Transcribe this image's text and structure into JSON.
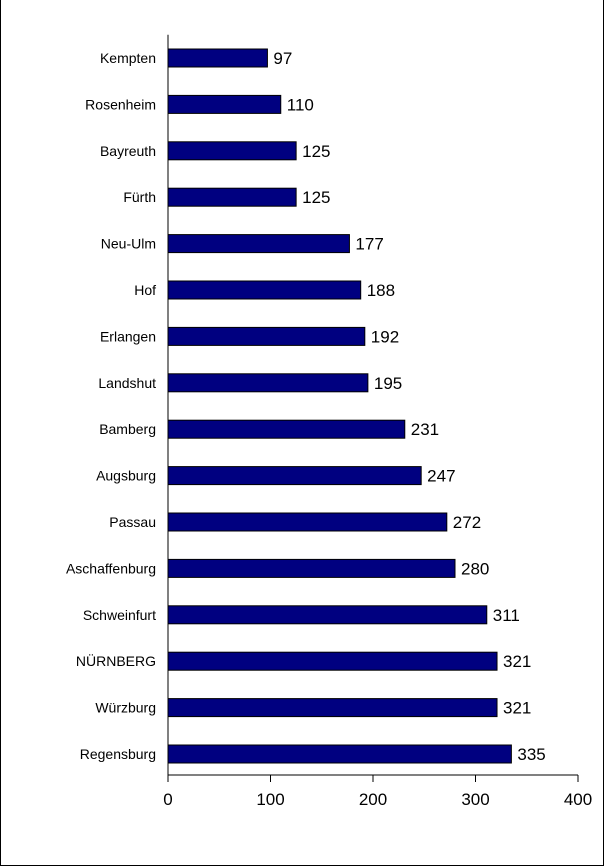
{
  "chart_data": {
    "type": "bar",
    "orientation": "horizontal",
    "title": "",
    "xlabel": "",
    "ylabel": "",
    "categories": [
      "Kempten",
      "Rosenheim",
      "Bayreuth",
      "Fürth",
      "Neu-Ulm",
      "Hof",
      "Erlangen",
      "Landshut",
      "Bamberg",
      "Augsburg",
      "Passau",
      "Aschaffenburg",
      "Schweinfurt",
      "NÜRNBERG",
      "Würzburg",
      "Regensburg"
    ],
    "values": [
      97,
      110,
      125,
      125,
      177,
      188,
      192,
      195,
      231,
      247,
      272,
      280,
      311,
      321,
      321,
      335
    ],
    "value_labels": [
      "97",
      "110",
      "125",
      "125",
      "177",
      "188",
      "192",
      "195",
      "231",
      "247",
      "272",
      "280",
      "311",
      "321",
      "321",
      "335"
    ],
    "xlim": [
      0,
      400
    ],
    "x_ticks": [
      0,
      100,
      200,
      300,
      400
    ],
    "x_tick_labels": [
      "0",
      "100",
      "200",
      "300",
      "400"
    ],
    "grid": false,
    "legend": "none",
    "bar_color": "#000080",
    "bar_edge_color": "#000000"
  }
}
